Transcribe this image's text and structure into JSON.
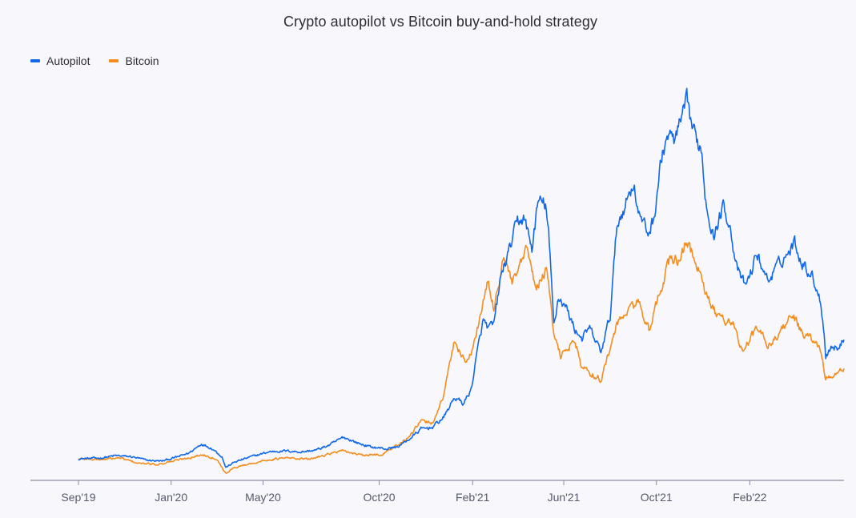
{
  "chart_data": {
    "type": "line",
    "title": "Crypto autopilot vs Bitcoin buy-and-hold strategy",
    "xlabel": "",
    "ylabel": "",
    "x_ticks": [
      "Sep'19",
      "Jan'20",
      "May'20",
      "Oct'20",
      "Feb'21",
      "Jun'21",
      "Oct'21",
      "Feb'22"
    ],
    "y_axis": "hidden",
    "grid": false,
    "legend_position": "top-left",
    "ylim": [
      0,
      10
    ],
    "series": [
      {
        "name": "Autopilot",
        "color": "#1168e8",
        "points": [
          [
            "2019-09-01",
            1.0
          ],
          [
            "2019-10-01",
            1.02
          ],
          [
            "2019-10-20",
            1.08
          ],
          [
            "2019-11-10",
            1.05
          ],
          [
            "2019-12-01",
            0.96
          ],
          [
            "2019-12-20",
            0.94
          ],
          [
            "2020-01-10",
            1.05
          ],
          [
            "2020-01-25",
            1.15
          ],
          [
            "2020-02-10",
            1.38
          ],
          [
            "2020-02-25",
            1.25
          ],
          [
            "2020-03-08",
            1.05
          ],
          [
            "2020-03-13",
            0.78
          ],
          [
            "2020-03-25",
            0.92
          ],
          [
            "2020-04-15",
            1.05
          ],
          [
            "2020-05-10",
            1.18
          ],
          [
            "2020-06-01",
            1.2
          ],
          [
            "2020-06-20",
            1.17
          ],
          [
            "2020-07-10",
            1.22
          ],
          [
            "2020-07-28",
            1.35
          ],
          [
            "2020-08-15",
            1.55
          ],
          [
            "2020-09-05",
            1.38
          ],
          [
            "2020-09-20",
            1.3
          ],
          [
            "2020-10-10",
            1.25
          ],
          [
            "2020-10-25",
            1.3
          ],
          [
            "2020-11-10",
            1.5
          ],
          [
            "2020-11-25",
            1.75
          ],
          [
            "2020-12-10",
            1.8
          ],
          [
            "2020-12-25",
            2.05
          ],
          [
            "2021-01-08",
            2.55
          ],
          [
            "2021-01-20",
            2.4
          ],
          [
            "2021-01-30",
            2.75
          ],
          [
            "2021-02-08",
            3.8
          ],
          [
            "2021-02-15",
            4.5
          ],
          [
            "2021-02-22",
            4.3
          ],
          [
            "2021-03-01",
            4.4
          ],
          [
            "2021-03-10",
            5.6
          ],
          [
            "2021-03-20",
            6.2
          ],
          [
            "2021-04-01",
            7.0
          ],
          [
            "2021-04-10",
            7.1
          ],
          [
            "2021-04-20",
            6.3
          ],
          [
            "2021-04-28",
            7.5
          ],
          [
            "2021-05-08",
            7.45
          ],
          [
            "2021-05-12",
            6.7
          ],
          [
            "2021-05-19",
            4.4
          ],
          [
            "2021-05-25",
            5.1
          ],
          [
            "2021-06-05",
            4.8
          ],
          [
            "2021-06-15",
            4.3
          ],
          [
            "2021-06-25",
            4.05
          ],
          [
            "2021-07-05",
            4.3
          ],
          [
            "2021-07-20",
            3.7
          ],
          [
            "2021-08-01",
            4.6
          ],
          [
            "2021-08-10",
            6.9
          ],
          [
            "2021-08-20",
            7.4
          ],
          [
            "2021-09-01",
            8.0
          ],
          [
            "2021-09-08",
            7.2
          ],
          [
            "2021-09-20",
            6.7
          ],
          [
            "2021-09-28",
            7.1
          ],
          [
            "2021-10-06",
            8.4
          ],
          [
            "2021-10-15",
            9.2
          ],
          [
            "2021-10-25",
            9.05
          ],
          [
            "2021-11-02",
            9.5
          ],
          [
            "2021-11-10",
            10.0
          ],
          [
            "2021-11-20",
            9.2
          ],
          [
            "2021-11-30",
            8.8
          ],
          [
            "2021-12-04",
            7.7
          ],
          [
            "2021-12-15",
            6.6
          ],
          [
            "2021-12-28",
            7.4
          ],
          [
            "2022-01-05",
            7.0
          ],
          [
            "2022-01-15",
            5.8
          ],
          [
            "2022-01-25",
            5.4
          ],
          [
            "2022-02-01",
            5.6
          ],
          [
            "2022-02-10",
            6.2
          ],
          [
            "2022-02-25",
            5.5
          ],
          [
            "2022-03-10",
            5.9
          ],
          [
            "2022-03-25",
            6.25
          ],
          [
            "2022-04-01",
            6.5
          ],
          [
            "2022-04-10",
            6.0
          ],
          [
            "2022-04-25",
            5.6
          ],
          [
            "2022-05-05",
            5.0
          ],
          [
            "2022-05-10",
            4.2
          ],
          [
            "2022-05-12",
            3.6
          ],
          [
            "2022-05-20",
            3.85
          ],
          [
            "2022-05-30",
            3.8
          ],
          [
            "2022-06-05",
            4.05
          ]
        ]
      },
      {
        "name": "Bitcoin",
        "color": "#f28d1e",
        "points": [
          [
            "2019-09-01",
            1.0
          ],
          [
            "2019-10-01",
            0.98
          ],
          [
            "2019-10-25",
            1.02
          ],
          [
            "2019-11-20",
            0.88
          ],
          [
            "2019-12-15",
            0.86
          ],
          [
            "2020-01-10",
            0.97
          ],
          [
            "2020-02-12",
            1.1
          ],
          [
            "2020-03-01",
            1.0
          ],
          [
            "2020-03-13",
            0.63
          ],
          [
            "2020-03-25",
            0.78
          ],
          [
            "2020-04-15",
            0.88
          ],
          [
            "2020-05-10",
            0.98
          ],
          [
            "2020-06-01",
            1.02
          ],
          [
            "2020-07-01",
            0.99
          ],
          [
            "2020-07-28",
            1.13
          ],
          [
            "2020-08-15",
            1.2
          ],
          [
            "2020-09-10",
            1.08
          ],
          [
            "2020-10-05",
            1.11
          ],
          [
            "2020-10-25",
            1.35
          ],
          [
            "2020-11-10",
            1.55
          ],
          [
            "2020-11-25",
            1.95
          ],
          [
            "2020-12-10",
            1.9
          ],
          [
            "2020-12-25",
            2.6
          ],
          [
            "2021-01-08",
            4.0
          ],
          [
            "2021-01-22",
            3.45
          ],
          [
            "2021-02-01",
            3.75
          ],
          [
            "2021-02-10",
            4.55
          ],
          [
            "2021-02-21",
            5.45
          ],
          [
            "2021-03-01",
            4.8
          ],
          [
            "2021-03-14",
            6.15
          ],
          [
            "2021-03-25",
            5.4
          ],
          [
            "2021-04-14",
            6.3
          ],
          [
            "2021-04-25",
            5.3
          ],
          [
            "2021-05-10",
            5.8
          ],
          [
            "2021-05-19",
            4.1
          ],
          [
            "2021-05-28",
            3.6
          ],
          [
            "2021-06-15",
            4.0
          ],
          [
            "2021-06-25",
            3.3
          ],
          [
            "2021-07-20",
            3.0
          ],
          [
            "2021-08-10",
            4.4
          ],
          [
            "2021-08-25",
            4.75
          ],
          [
            "2021-09-07",
            5.0
          ],
          [
            "2021-09-22",
            4.2
          ],
          [
            "2021-10-05",
            5.2
          ],
          [
            "2021-10-20",
            6.1
          ],
          [
            "2021-11-01",
            6.0
          ],
          [
            "2021-11-10",
            6.55
          ],
          [
            "2021-11-25",
            5.8
          ],
          [
            "2021-12-04",
            5.2
          ],
          [
            "2021-12-20",
            4.6
          ],
          [
            "2022-01-10",
            4.45
          ],
          [
            "2022-01-22",
            3.7
          ],
          [
            "2022-02-10",
            4.3
          ],
          [
            "2022-02-25",
            3.9
          ],
          [
            "2022-03-10",
            4.1
          ],
          [
            "2022-03-28",
            4.7
          ],
          [
            "2022-04-10",
            4.2
          ],
          [
            "2022-04-25",
            4.0
          ],
          [
            "2022-05-05",
            3.75
          ],
          [
            "2022-05-12",
            3.05
          ],
          [
            "2022-05-25",
            3.1
          ],
          [
            "2022-06-05",
            3.3
          ]
        ]
      }
    ]
  }
}
